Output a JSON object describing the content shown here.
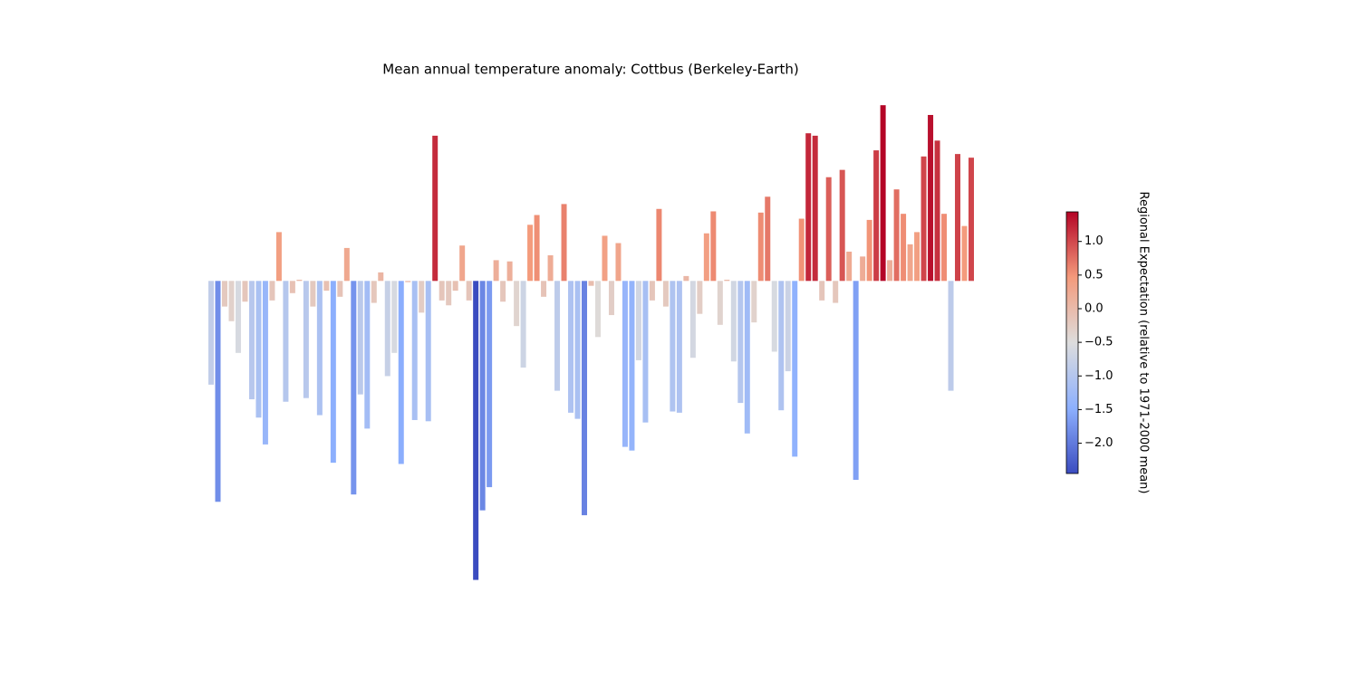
{
  "chart_data": {
    "type": "bar",
    "title": "Mean annual temperature anomaly: Cottbus (Berkeley-Earth)",
    "values": [
      -0.85,
      -1.81,
      -0.21,
      -0.33,
      -0.59,
      -0.17,
      -0.97,
      -1.12,
      -1.34,
      -0.16,
      0.4,
      -0.99,
      -0.1,
      0.01,
      -0.96,
      -0.21,
      -1.1,
      -0.08,
      -1.49,
      -0.13,
      0.27,
      -1.75,
      -0.93,
      -1.21,
      -0.18,
      0.07,
      -0.78,
      -0.59,
      -1.5,
      -0.01,
      -1.14,
      -0.26,
      -1.15,
      1.19,
      -0.16,
      -0.2,
      -0.08,
      0.29,
      -0.16,
      -2.45,
      -1.88,
      -1.69,
      0.17,
      -0.17,
      0.16,
      -0.37,
      -0.71,
      0.46,
      0.54,
      -0.13,
      0.21,
      -0.9,
      0.63,
      -1.08,
      -1.13,
      -1.92,
      -0.04,
      -0.46,
      0.37,
      -0.28,
      0.31,
      -1.36,
      -1.39,
      -0.65,
      -1.16,
      -0.16,
      0.59,
      -0.21,
      -1.07,
      -1.08,
      0.04,
      -0.63,
      -0.27,
      0.39,
      0.57,
      -0.36,
      0.01,
      -0.66,
      -1.0,
      -1.25,
      -0.34,
      0.56,
      0.69,
      -0.58,
      -1.06,
      -0.74,
      -1.44,
      0.51,
      1.21,
      1.19,
      -0.16,
      0.85,
      -0.18,
      0.91,
      0.24,
      -1.63,
      0.2,
      0.5,
      1.07,
      1.44,
      0.17,
      0.75,
      0.55,
      0.3,
      0.4,
      1.02,
      1.36,
      1.15,
      0.55,
      -0.9,
      1.04,
      0.45,
      1.01
    ],
    "ylim": [
      -2.65,
      1.69
    ],
    "cmap": "coolwarm",
    "colorbar": {
      "label": "Regional Expectation (relative to 1971-2000 mean)",
      "lim": [
        -2.45,
        1.44
      ],
      "ticks": [
        {
          "value": 1,
          "label": "1.0"
        },
        0.5,
        {
          "value": 0,
          "label": "0.0"
        },
        {
          "value": -0.5,
          "label": "−0.5"
        },
        {
          "value": -1,
          "label": "−1.0"
        },
        {
          "value": -1.5,
          "label": "−1.5"
        },
        {
          "value": -2,
          "label": "−2.0"
        }
      ]
    }
  }
}
